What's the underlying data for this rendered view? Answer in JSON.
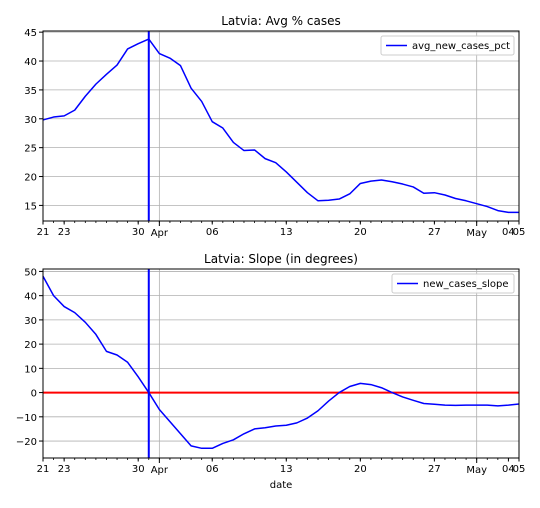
{
  "chart_data": [
    {
      "type": "line",
      "title": "Latvia: Avg % cases",
      "xlabel": "",
      "ylabel": "",
      "x_range": [
        "2020-03-21",
        "2020-05-05"
      ],
      "ylim": [
        12.3,
        45.2
      ],
      "y_ticks": [
        15,
        20,
        25,
        30,
        35,
        40,
        45
      ],
      "x_ticks_major": [
        {
          "date": "2020-04-01",
          "label": "Apr"
        },
        {
          "date": "2020-05-01",
          "label": "May"
        }
      ],
      "x_ticks_minor": [
        {
          "date": "2020-03-21",
          "label": "21"
        },
        {
          "date": "2020-03-23",
          "label": "23"
        },
        {
          "date": "2020-03-30",
          "label": "30"
        },
        {
          "date": "2020-04-06",
          "label": "06"
        },
        {
          "date": "2020-04-13",
          "label": "13"
        },
        {
          "date": "2020-04-20",
          "label": "20"
        },
        {
          "date": "2020-04-27",
          "label": "27"
        },
        {
          "date": "2020-05-04",
          "label": "04"
        },
        {
          "date": "2020-05-05",
          "label": "05"
        }
      ],
      "grid": true,
      "legend_position": "top-right",
      "series": [
        {
          "name": "avg_new_cases_pct",
          "color": "#0000ff",
          "x": [
            "2020-03-21",
            "2020-03-22",
            "2020-03-23",
            "2020-03-24",
            "2020-03-25",
            "2020-03-26",
            "2020-03-27",
            "2020-03-28",
            "2020-03-29",
            "2020-03-30",
            "2020-03-31",
            "2020-04-01",
            "2020-04-02",
            "2020-04-03",
            "2020-04-04",
            "2020-04-05",
            "2020-04-06",
            "2020-04-07",
            "2020-04-08",
            "2020-04-09",
            "2020-04-10",
            "2020-04-11",
            "2020-04-12",
            "2020-04-13",
            "2020-04-14",
            "2020-04-15",
            "2020-04-16",
            "2020-04-17",
            "2020-04-18",
            "2020-04-19",
            "2020-04-20",
            "2020-04-21",
            "2020-04-22",
            "2020-04-23",
            "2020-04-24",
            "2020-04-25",
            "2020-04-26",
            "2020-04-27",
            "2020-04-28",
            "2020-04-29",
            "2020-04-30",
            "2020-05-01",
            "2020-05-02",
            "2020-05-03",
            "2020-05-04",
            "2020-05-05"
          ],
          "values": [
            29.8,
            30.3,
            30.5,
            31.5,
            33.9,
            36.0,
            37.7,
            39.3,
            42.1,
            43.0,
            43.8,
            41.3,
            40.5,
            39.2,
            35.3,
            33.0,
            29.5,
            28.4,
            25.9,
            24.5,
            24.6,
            23.1,
            22.4,
            20.8,
            19.0,
            17.2,
            15.8,
            15.9,
            16.1,
            17.0,
            18.8,
            19.2,
            19.4,
            19.1,
            18.7,
            18.2,
            17.1,
            17.2,
            16.8,
            16.2,
            15.8,
            15.3,
            14.8,
            14.1,
            13.8,
            13.8
          ]
        }
      ],
      "vertical_line": {
        "date": "2020-03-31",
        "color": "#0000ff"
      }
    },
    {
      "type": "line",
      "title": "Latvia: Slope (in degrees)",
      "xlabel": "date",
      "ylabel": "",
      "x_range": [
        "2020-03-21",
        "2020-05-05"
      ],
      "ylim": [
        -27,
        51
      ],
      "y_ticks": [
        -20,
        -10,
        0,
        10,
        20,
        30,
        40,
        50
      ],
      "x_ticks_major": [
        {
          "date": "2020-04-01",
          "label": "Apr"
        },
        {
          "date": "2020-05-01",
          "label": "May"
        }
      ],
      "x_ticks_minor": [
        {
          "date": "2020-03-21",
          "label": "21"
        },
        {
          "date": "2020-03-23",
          "label": "23"
        },
        {
          "date": "2020-03-30",
          "label": "30"
        },
        {
          "date": "2020-04-06",
          "label": "06"
        },
        {
          "date": "2020-04-13",
          "label": "13"
        },
        {
          "date": "2020-04-20",
          "label": "20"
        },
        {
          "date": "2020-04-27",
          "label": "27"
        },
        {
          "date": "2020-05-04",
          "label": "04"
        },
        {
          "date": "2020-05-05",
          "label": "05"
        }
      ],
      "grid": true,
      "legend_position": "top-right",
      "series": [
        {
          "name": "new_cases_slope",
          "color": "#0000ff",
          "x": [
            "2020-03-21",
            "2020-03-22",
            "2020-03-23",
            "2020-03-24",
            "2020-03-25",
            "2020-03-26",
            "2020-03-27",
            "2020-03-28",
            "2020-03-29",
            "2020-03-30",
            "2020-03-31",
            "2020-04-01",
            "2020-04-02",
            "2020-04-03",
            "2020-04-04",
            "2020-04-05",
            "2020-04-06",
            "2020-04-07",
            "2020-04-08",
            "2020-04-09",
            "2020-04-10",
            "2020-04-11",
            "2020-04-12",
            "2020-04-13",
            "2020-04-14",
            "2020-04-15",
            "2020-04-16",
            "2020-04-17",
            "2020-04-18",
            "2020-04-19",
            "2020-04-20",
            "2020-04-21",
            "2020-04-22",
            "2020-04-23",
            "2020-04-24",
            "2020-04-25",
            "2020-04-26",
            "2020-04-27",
            "2020-04-28",
            "2020-04-29",
            "2020-04-30",
            "2020-05-01",
            "2020-05-02",
            "2020-05-03",
            "2020-05-04",
            "2020-05-05"
          ],
          "values": [
            48,
            40,
            35.5,
            33,
            29,
            24,
            17,
            15.5,
            12.5,
            6.5,
            0,
            -7,
            -12,
            -17,
            -22,
            -23,
            -23,
            -21,
            -19.5,
            -17,
            -15,
            -14.5,
            -13.8,
            -13.5,
            -12.5,
            -10.5,
            -7.5,
            -3.5,
            0,
            2.5,
            3.8,
            3.3,
            2,
            0,
            -1.8,
            -3.2,
            -4.5,
            -4.8,
            -5.2,
            -5.3,
            -5.2,
            -5.2,
            -5.2,
            -5.5,
            -5.2,
            -4.7
          ]
        }
      ],
      "vertical_line": {
        "date": "2020-03-31",
        "color": "#0000ff"
      },
      "horizontal_line": {
        "value": 0,
        "color": "#ff0000"
      }
    }
  ]
}
